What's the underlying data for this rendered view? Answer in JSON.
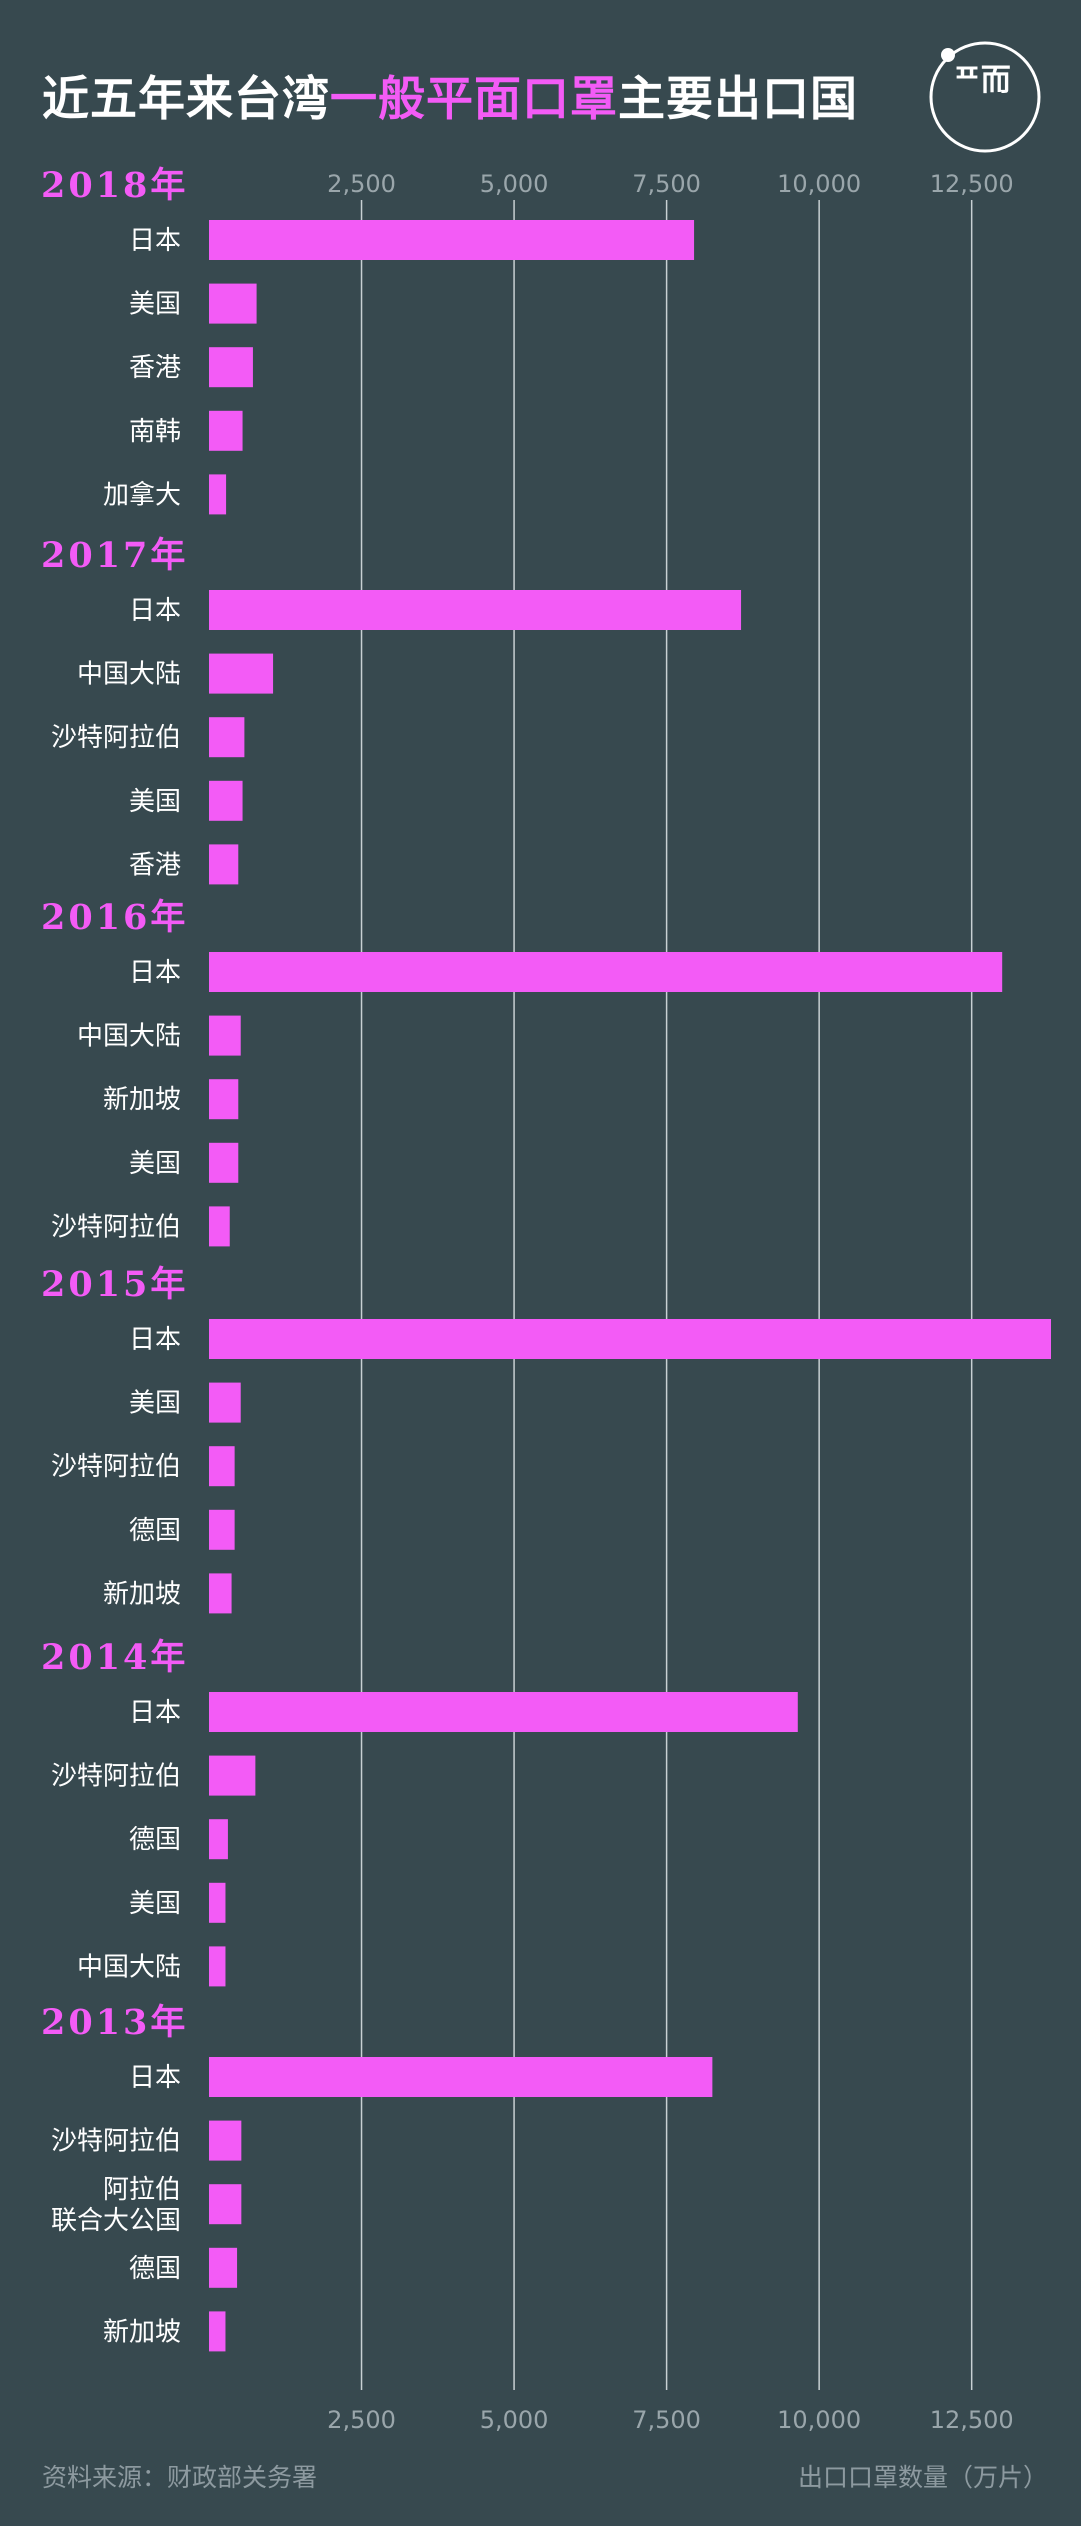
{
  "title": {
    "before": "近五年来台湾",
    "highlight": "一般平面口罩",
    "after": "主要出口国"
  },
  "logo": {
    "icon": "duan-logo-icon",
    "text": "ᄑ而"
  },
  "source": "资料来源：财政部关务署",
  "unit_label": "出口口罩数量（万片）",
  "colors": {
    "background": "#37494f",
    "bar": "#f35bf6",
    "year_label": "#f35bf6",
    "grid": "#c8d0d3",
    "tick": "#9aa6ab",
    "category": "#ffffff"
  },
  "chart_data": {
    "type": "bar",
    "orientation": "horizontal",
    "xlabel": "出口口罩数量（万片）",
    "xlim": [
      0,
      13800
    ],
    "xticks": [
      2500,
      5000,
      7500,
      10000,
      12500
    ],
    "xtick_labels": [
      "2,500",
      "5,000",
      "7,500",
      "10,000",
      "12,500"
    ],
    "grid": true,
    "groups": [
      {
        "year": "2018年",
        "categories": [
          "日本",
          "美国",
          "香港",
          "南韩",
          "加拿大"
        ],
        "values": [
          7950,
          780,
          720,
          550,
          280
        ]
      },
      {
        "year": "2017年",
        "categories": [
          "日本",
          "中国大陆",
          "沙特阿拉伯",
          "美国",
          "香港"
        ],
        "values": [
          8720,
          1050,
          580,
          550,
          480
        ]
      },
      {
        "year": "2016年",
        "categories": [
          "日本",
          "中国大陆",
          "新加坡",
          "美国",
          "沙特阿拉伯"
        ],
        "values": [
          13000,
          520,
          480,
          480,
          340
        ]
      },
      {
        "year": "2015年",
        "categories": [
          "日本",
          "美国",
          "沙特阿拉伯",
          "德国",
          "新加坡"
        ],
        "values": [
          13800,
          520,
          420,
          420,
          370
        ]
      },
      {
        "year": "2014年",
        "categories": [
          "日本",
          "沙特阿拉伯",
          "德国",
          "美国",
          "中国大陆"
        ],
        "values": [
          9650,
          760,
          310,
          270,
          270
        ]
      },
      {
        "year": "2013年",
        "categories": [
          "日本",
          "沙特阿拉伯",
          "阿拉伯联合大公国",
          "德国",
          "新加坡"
        ],
        "category_lines": [
          null,
          null,
          [
            "阿拉伯",
            "联合大公国"
          ],
          null,
          null
        ],
        "values": [
          8250,
          530,
          530,
          460,
          270
        ]
      }
    ]
  }
}
